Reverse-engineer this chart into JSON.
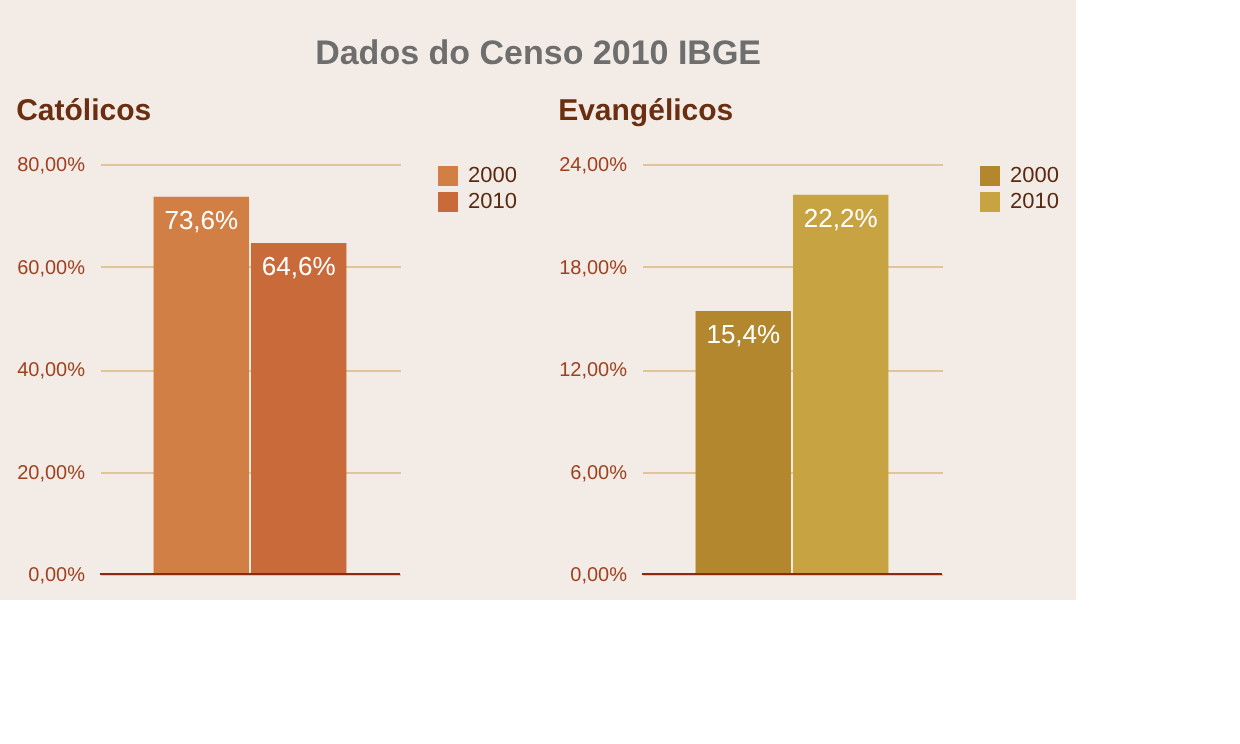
{
  "chart_data": [
    {
      "type": "bar",
      "title": "Católicos",
      "annotations": [
        "Dados do Censo 2010 IBGE"
      ],
      "categories": [
        null
      ],
      "series": [
        {
          "name": "2000",
          "color": "#d17f45",
          "values": [
            73.6
          ],
          "value_labels": [
            "73,6%"
          ]
        },
        {
          "name": "2010",
          "color": "#c96a3a",
          "values": [
            64.6
          ],
          "value_labels": [
            "64,6%"
          ]
        }
      ],
      "ylim": [
        0,
        80
      ],
      "yticks": [
        {
          "value": 0,
          "label": "0,00%"
        },
        {
          "value": 20,
          "label": "20,00%"
        },
        {
          "value": 40,
          "label": "40,00%"
        },
        {
          "value": 60,
          "label": "60,00%"
        },
        {
          "value": 80,
          "label": "80,00%"
        }
      ],
      "grid": "y",
      "legend": "top right",
      "tick_labels": "y"
    },
    {
      "type": "bar",
      "title": "Evangélicos",
      "categories": [
        null
      ],
      "series": [
        {
          "name": "2000",
          "color": "#b3872e",
          "values": [
            15.4
          ],
          "value_labels": [
            "15,4%"
          ]
        },
        {
          "name": "2010",
          "color": "#c8a342",
          "values": [
            22.2
          ],
          "value_labels": [
            "22,2%"
          ]
        }
      ],
      "ylim": [
        0,
        24
      ],
      "yticks": [
        {
          "value": 0,
          "label": "0,00%"
        },
        {
          "value": 6,
          "label": "6,00%"
        },
        {
          "value": 12,
          "label": "12,00%"
        },
        {
          "value": 18,
          "label": "18,00%"
        },
        {
          "value": 24,
          "label": "24,00%"
        }
      ],
      "grid": "y",
      "legend": "top right",
      "tick_labels": "y"
    }
  ]
}
